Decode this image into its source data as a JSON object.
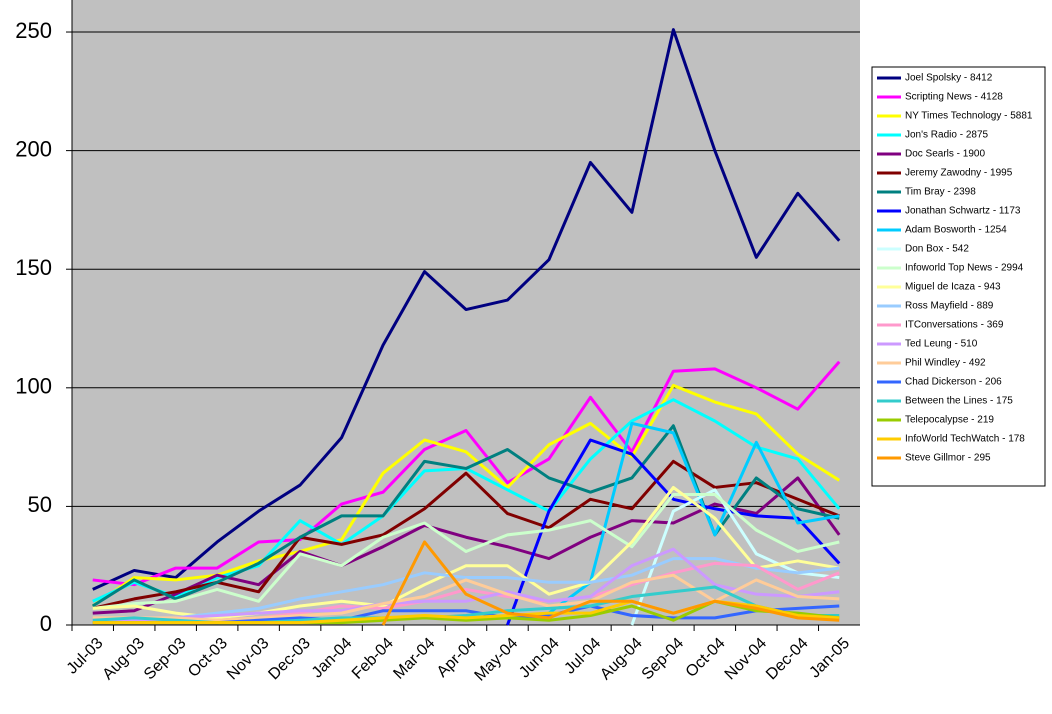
{
  "chart_data": {
    "type": "line",
    "categories": [
      "Jul-03",
      "Aug-03",
      "Sep-03",
      "Oct-03",
      "Nov-03",
      "Dec-03",
      "Jan-04",
      "Feb-04",
      "Mar-04",
      "Apr-04",
      "May-04",
      "Jun-04",
      "Jul-04",
      "Aug-04",
      "Sep-04",
      "Oct-04",
      "Nov-04",
      "Dec-04",
      "Jan-05"
    ],
    "ylim": [
      0,
      263.5
    ],
    "yticks": [
      0,
      50,
      100,
      150,
      200,
      250
    ],
    "grid": true,
    "legend": "right",
    "series": [
      {
        "name": "Joel Spolsky - 8412",
        "color": "#000080",
        "values": [
          15,
          23,
          20,
          35,
          48,
          59,
          79,
          118,
          149,
          133,
          137,
          154,
          195,
          174,
          251,
          200,
          155,
          182,
          162
        ]
      },
      {
        "name": "Scripting News - 4128",
        "color": "#ff00ff",
        "values": [
          19,
          17,
          24,
          24,
          35,
          36,
          51,
          56,
          74,
          82,
          60,
          70,
          96,
          73,
          107,
          108,
          100,
          91,
          111
        ]
      },
      {
        "name": "NY Times Technology - 5881",
        "color": "#ffff00",
        "values": [
          8,
          20,
          19,
          21,
          27,
          31,
          36,
          64,
          78,
          73,
          58,
          76,
          85,
          71,
          101,
          94,
          89,
          72,
          61
        ]
      },
      {
        "name": "Jon's Radio - 2875",
        "color": "#00ffff",
        "values": [
          10,
          18,
          12,
          20,
          25,
          44,
          34,
          46,
          65,
          66,
          57,
          48,
          70,
          86,
          95,
          86,
          75,
          70,
          49
        ]
      },
      {
        "name": "Doc Searls - 1900",
        "color": "#800080",
        "values": [
          5,
          6,
          13,
          21,
          17,
          31,
          25,
          33,
          42,
          37,
          33,
          28,
          37,
          44,
          43,
          51,
          47,
          62,
          38
        ]
      },
      {
        "name": "Jeremy Zawodny - 1995",
        "color": "#800000",
        "values": [
          7,
          11,
          14,
          18,
          14,
          37,
          34,
          38,
          49,
          64,
          47,
          41,
          53,
          49,
          69,
          58,
          60,
          53,
          46
        ]
      },
      {
        "name": "Tim Bray - 2398",
        "color": "#008080",
        "values": [
          8,
          19,
          11,
          18,
          26,
          37,
          46,
          46,
          69,
          66,
          74,
          62,
          56,
          62,
          84,
          38,
          62,
          49,
          45
        ]
      },
      {
        "name": "Jonathan Schwartz - 1173",
        "color": "#0000ff",
        "values": [
          null,
          null,
          null,
          null,
          null,
          null,
          null,
          null,
          null,
          null,
          0,
          48,
          78,
          72,
          53,
          49,
          46,
          45,
          26
        ]
      },
      {
        "name": "Adam Bosworth - 1254",
        "color": "#00ccff",
        "values": [
          null,
          null,
          null,
          null,
          null,
          null,
          null,
          null,
          null,
          null,
          null,
          5,
          18,
          85,
          81,
          38,
          77,
          43,
          46
        ]
      },
      {
        "name": "Don Box - 542",
        "color": "#ccffff",
        "values": [
          null,
          null,
          null,
          null,
          null,
          null,
          null,
          null,
          null,
          null,
          null,
          null,
          null,
          0,
          48,
          57,
          30,
          22,
          20
        ]
      },
      {
        "name": "Infoworld Top News - 2994",
        "color": "#ccffcc",
        "values": [
          7,
          9,
          10,
          15,
          10,
          30,
          25,
          37,
          43,
          31,
          38,
          40,
          44,
          33,
          55,
          55,
          40,
          31,
          35
        ]
      },
      {
        "name": "Miguel de Icaza - 943",
        "color": "#ffff99",
        "values": [
          7,
          8,
          5,
          3,
          5,
          8,
          10,
          8,
          17,
          25,
          25,
          13,
          18,
          35,
          58,
          45,
          24,
          27,
          24
        ]
      },
      {
        "name": "Ross Mayfield - 889",
        "color": "#99ccff",
        "values": [
          2,
          3,
          3,
          5,
          7,
          11,
          14,
          17,
          22,
          20,
          20,
          18,
          18,
          21,
          28,
          28,
          24,
          22,
          24
        ]
      },
      {
        "name": "ITConversations - 369",
        "color": "#ff99cc",
        "values": [
          2,
          2,
          2,
          2,
          3,
          5,
          8,
          7,
          10,
          15,
          12,
          10,
          12,
          17,
          22,
          26,
          25,
          15,
          22
        ]
      },
      {
        "name": "Ted Leung - 510",
        "color": "#cc99ff",
        "values": [
          1,
          2,
          3,
          4,
          5,
          6,
          6,
          9,
          10,
          10,
          14,
          10,
          12,
          25,
          32,
          17,
          13,
          12,
          14
        ]
      },
      {
        "name": "Phil Windley - 492",
        "color": "#ffcc99",
        "values": [
          3,
          3,
          3,
          2,
          3,
          4,
          5,
          9,
          12,
          19,
          13,
          8,
          10,
          18,
          21,
          10,
          19,
          12,
          11
        ]
      },
      {
        "name": "Chad Dickerson - 206",
        "color": "#3366ff",
        "values": [
          1,
          1,
          1,
          1,
          2,
          3,
          2,
          6,
          6,
          6,
          3,
          4,
          8,
          4,
          3,
          3,
          6,
          7,
          8
        ]
      },
      {
        "name": "Between the Lines - 175",
        "color": "#33cccc",
        "values": [
          2,
          3,
          2,
          1,
          1,
          2,
          3,
          3,
          3,
          4,
          6,
          7,
          8,
          12,
          14,
          16,
          8,
          4,
          4
        ]
      },
      {
        "name": "Telepocalypse - 219",
        "color": "#99cc00",
        "values": [
          1,
          1,
          1,
          1,
          1,
          1,
          1,
          2,
          3,
          2,
          3,
          2,
          4,
          8,
          2,
          10,
          6,
          5,
          3
        ]
      },
      {
        "name": "InfoWorld TechWatch - 178",
        "color": "#ffcc00",
        "values": [
          1,
          1,
          1,
          1,
          1,
          1,
          2,
          3,
          4,
          3,
          4,
          5,
          5,
          10,
          5,
          10,
          8,
          4,
          3
        ]
      },
      {
        "name": "Steve Gillmor - 295",
        "color": "#ff9900",
        "values": [
          null,
          null,
          null,
          null,
          null,
          null,
          null,
          0,
          35,
          13,
          5,
          3,
          10,
          10,
          5,
          10,
          7,
          3,
          2
        ]
      }
    ]
  }
}
